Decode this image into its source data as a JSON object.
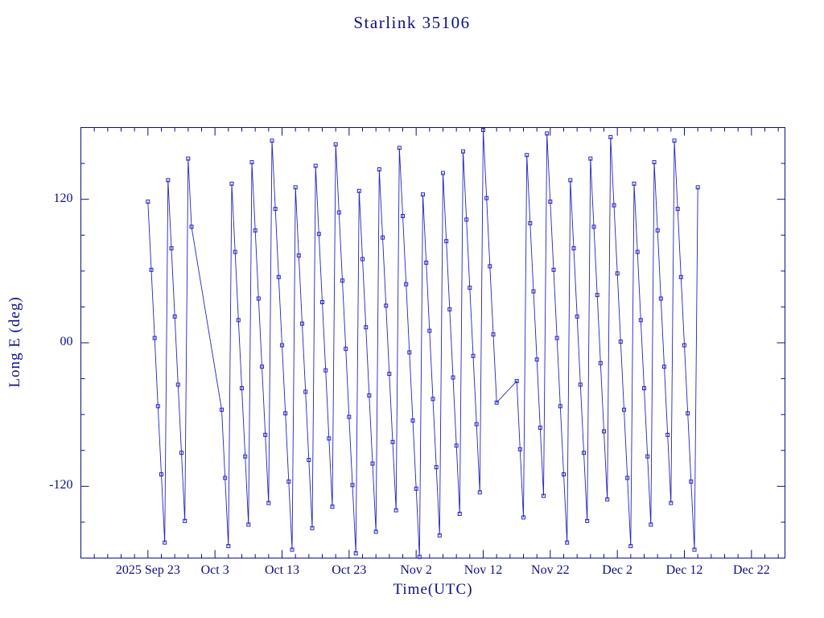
{
  "page": {
    "background": "#ffffff"
  },
  "chart_data": {
    "type": "line",
    "title": "Starlink 35106",
    "xlabel": "Time(UTC)",
    "ylabel": "Long E (deg)",
    "colors": {
      "text": "#0d0d85",
      "line": "#2424c0",
      "marker": "#2424c0"
    },
    "marker": "open-square",
    "grid": false,
    "legend": "none",
    "ylim": [
      -180,
      180
    ],
    "yticks": [
      {
        "value": -120,
        "label": "-120"
      },
      {
        "value": 0,
        "label": "00"
      },
      {
        "value": 120,
        "label": "120"
      }
    ],
    "y_minor_step": 30,
    "x_unit": "days, 0 = 2025 Sep 13",
    "xlim_days": [
      0,
      105
    ],
    "xticks": [
      {
        "day": 10,
        "label": "2025 Sep 23"
      },
      {
        "day": 20,
        "label": "Oct 3"
      },
      {
        "day": 30,
        "label": "Oct 13"
      },
      {
        "day": 40,
        "label": "Oct 23"
      },
      {
        "day": 50,
        "label": "Nov 2"
      },
      {
        "day": 60,
        "label": "Nov 12"
      },
      {
        "day": 70,
        "label": "Nov 22"
      },
      {
        "day": 80,
        "label": "Dec 2"
      },
      {
        "day": 90,
        "label": "Dec 12"
      },
      {
        "day": 100,
        "label": "Dec 22"
      }
    ],
    "x_minor_step": 2,
    "segments": [
      {
        "t0": 10,
        "dt": 0.5,
        "lon": [
          118,
          61,
          4,
          -53,
          -110,
          -167,
          136,
          79,
          22,
          -35,
          -92,
          -149,
          154,
          97
        ]
      },
      {
        "t0": 21,
        "dt": 0.5,
        "lon": [
          -56,
          -113,
          -170,
          133,
          76,
          19,
          -38,
          -95,
          -152,
          151,
          94,
          37,
          -20,
          -77,
          -134,
          169,
          112,
          55,
          -2,
          -59,
          -116,
          -173,
          130,
          73,
          16,
          -41,
          -98,
          -155,
          148,
          91,
          34,
          -23,
          -80,
          -137,
          166,
          109,
          52,
          -5,
          -62,
          -119,
          -176,
          127,
          70,
          13,
          -44,
          -101,
          -158,
          145,
          88,
          31,
          -26,
          -83,
          -140,
          163,
          106,
          49,
          -8,
          -65,
          -122,
          -179,
          124,
          67,
          10,
          -47,
          -104,
          -161,
          142,
          85,
          28,
          -29,
          -86,
          -143,
          160,
          103,
          46,
          -11,
          -68,
          -125,
          178,
          121,
          64,
          7,
          -50
        ]
      },
      {
        "t0": 65,
        "dt": 0.5,
        "lon": [
          -32,
          -89,
          -146,
          157,
          100,
          43,
          -14,
          -71,
          -128,
          175,
          118,
          61,
          4,
          -53,
          -110,
          -167,
          136,
          79,
          22,
          -35,
          -92,
          -149,
          154,
          97,
          40,
          -17,
          -74,
          -131,
          172,
          115,
          58,
          1,
          -56,
          -113,
          -170,
          133,
          76,
          19,
          -38,
          -95,
          -152,
          151,
          94,
          37,
          -20,
          -77,
          -134,
          169,
          112,
          55,
          -2,
          -59,
          -116,
          -173,
          130
        ]
      }
    ]
  }
}
